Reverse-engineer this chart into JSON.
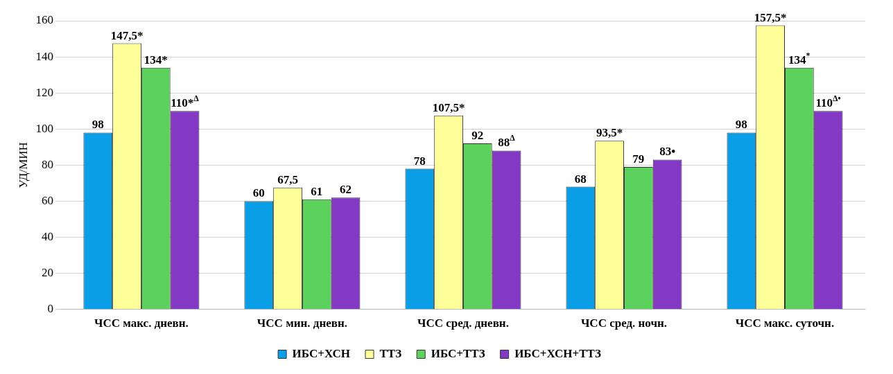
{
  "chart_data": {
    "type": "bar",
    "ylabel": "УД/МИН",
    "categories": [
      "ЧСС макс. дневн.",
      "ЧСС мин. дневн.",
      "ЧСС сред. дневн.",
      "ЧСС сред. ночн.",
      "ЧСС макс. суточн."
    ],
    "series": [
      {
        "name": "ИБС+ХСН",
        "color": "#0a9ee6",
        "values": [
          98,
          60,
          78,
          68,
          98
        ],
        "value_labels": [
          "98",
          "60",
          "78",
          "68",
          "98"
        ]
      },
      {
        "name": "ТТЗ",
        "color": "#ffff99",
        "values": [
          147.5,
          67.5,
          107.5,
          93.5,
          157.5
        ],
        "value_labels": [
          "147,5*",
          "67,5",
          "107,5*",
          "93,5*",
          "157,5*"
        ]
      },
      {
        "name": "ИБС+ТТЗ",
        "color": "#5cd15c",
        "values": [
          134,
          61,
          92,
          79,
          134
        ],
        "value_labels": [
          "134*",
          "61",
          "92",
          "79",
          "134$^{*}$"
        ]
      },
      {
        "name": "ИБС+ХСН+ТТЗ",
        "color": "#8339c4",
        "values": [
          110,
          62,
          88,
          83,
          110
        ],
        "value_labels": [
          "110*$^{Δ}$",
          "62",
          "88$^{Δ}$",
          "83•",
          "110$^{Δ•}$"
        ]
      }
    ],
    "ylim": [
      0,
      160
    ],
    "yticks": [
      0,
      20,
      40,
      60,
      80,
      100,
      120,
      140,
      160
    ],
    "grid": "y",
    "legend": "bottom"
  }
}
